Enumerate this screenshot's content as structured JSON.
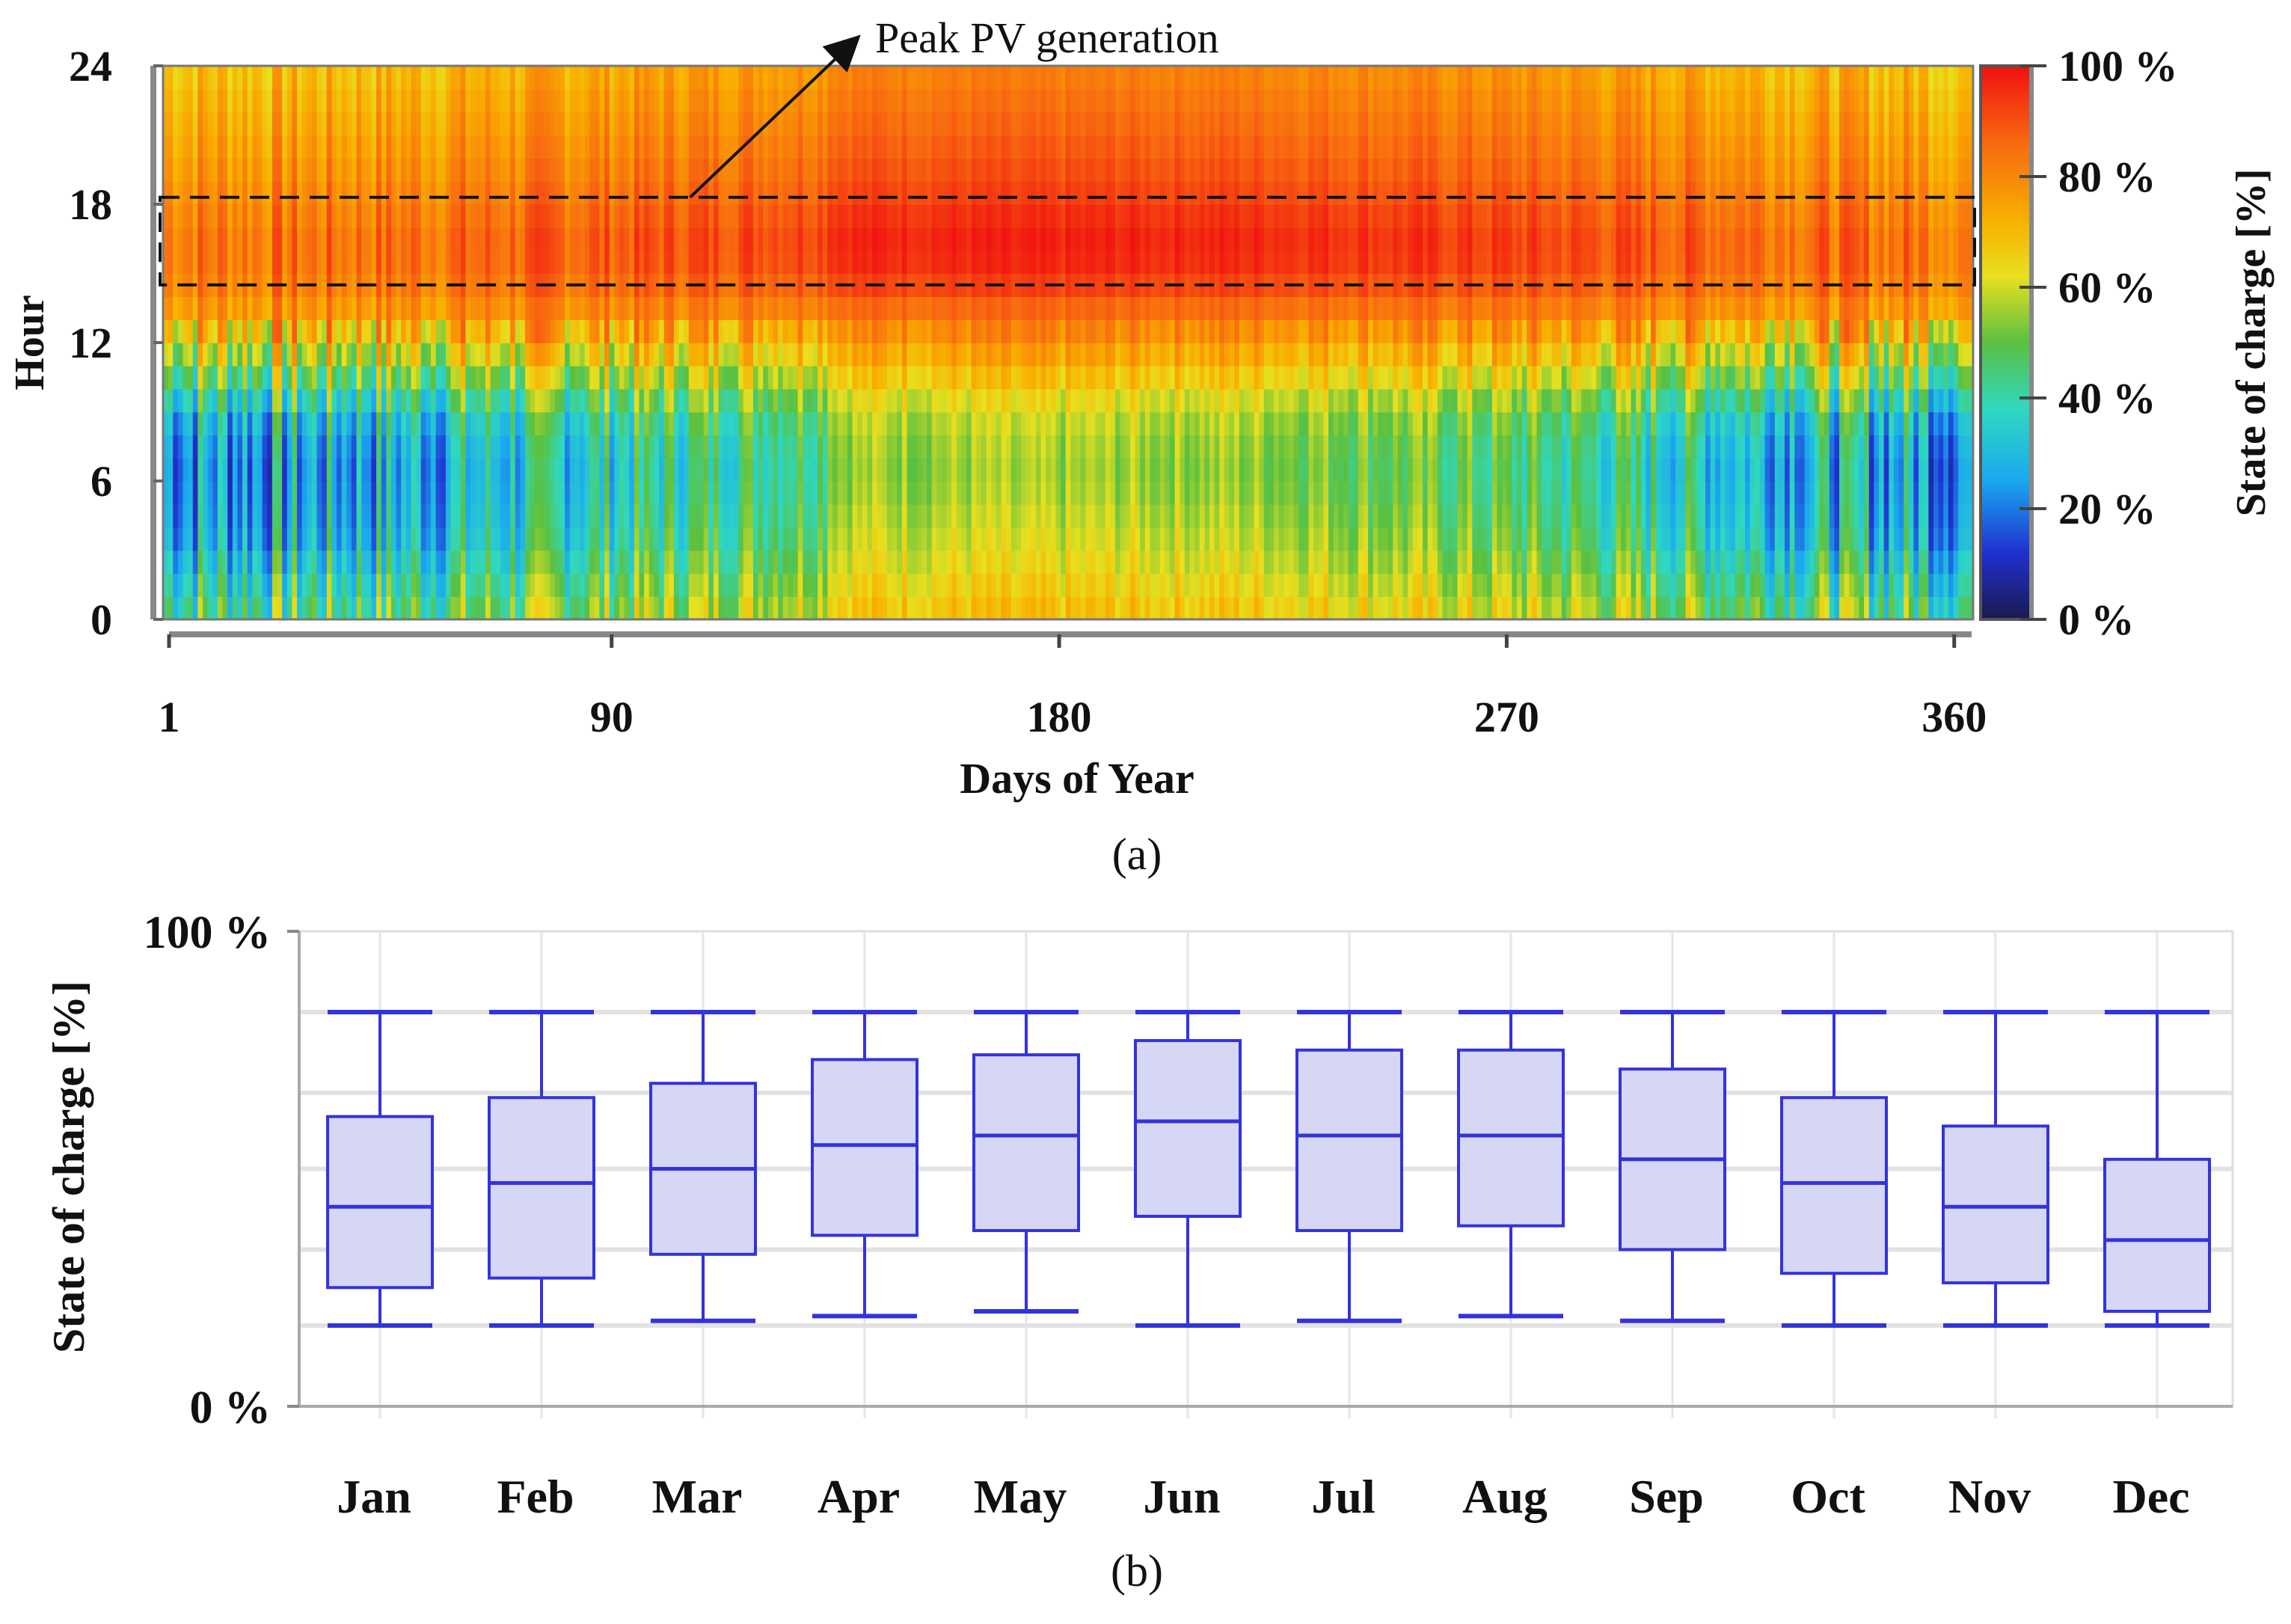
{
  "chart_data": [
    {
      "id": "a",
      "type": "heatmap",
      "panel_label": "(a)",
      "xlabel": "Days of Year",
      "ylabel": "Hour",
      "xlim": [
        1,
        365
      ],
      "ylim": [
        0,
        24
      ],
      "x_ticks": [
        "1",
        "90",
        "180",
        "270",
        "360"
      ],
      "x_tick_values": [
        1,
        90,
        180,
        270,
        360
      ],
      "y_ticks": [
        "0",
        "6",
        "12",
        "18",
        "24"
      ],
      "y_tick_values": [
        0,
        6,
        12,
        18,
        24
      ],
      "colorbar": {
        "label": "State of charge [%]",
        "range": [
          0,
          100
        ],
        "ticks": [
          "0 %",
          "20 %",
          "40 %",
          "60 %",
          "80 %",
          "100 %"
        ],
        "tick_values": [
          0,
          20,
          40,
          60,
          80,
          100
        ],
        "colormap": [
          "#1a1a4e",
          "#2030d0",
          "#1aa8f0",
          "#30d8c0",
          "#5ac040",
          "#e8e020",
          "#f8b000",
          "#f86a10",
          "#f01010"
        ]
      },
      "annotation": {
        "text": "Peak PV generation",
        "hour_range": [
          14.5,
          18.3
        ],
        "day_range": [
          1,
          365
        ],
        "arrow_from_day": 107,
        "arrow_from_hour": 18.3
      },
      "pattern": {
        "description_values": "Diurnal SOC: low (20-50 %) overnight/morning, rising to 80-100 % in afternoon peak hours; summer days (~day 140-170) consistently high",
        "hourly_profile_by_season": {
          "winter": [
            45,
            40,
            35,
            30,
            28,
            27,
            26,
            28,
            32,
            40,
            50,
            60,
            70,
            78,
            82,
            84,
            84,
            82,
            80,
            78,
            76,
            74,
            72,
            70,
            68
          ],
          "summer": [
            68,
            65,
            62,
            60,
            58,
            56,
            55,
            56,
            58,
            62,
            68,
            74,
            80,
            86,
            92,
            96,
            97,
            95,
            92,
            90,
            88,
            86,
            84,
            82,
            80
          ]
        }
      }
    },
    {
      "id": "b",
      "type": "box",
      "panel_label": "(b)",
      "ylabel": "State of charge [%]",
      "ylim": [
        0,
        100
      ],
      "y_ticks": [
        "0 %",
        "100 %"
      ],
      "y_tick_values": [
        0,
        100
      ],
      "grid_values": [
        17,
        33,
        50,
        66,
        83
      ],
      "categories": [
        "Jan",
        "Feb",
        "Mar",
        "Apr",
        "May",
        "Jun",
        "Jul",
        "Aug",
        "Sep",
        "Oct",
        "Nov",
        "Dec"
      ],
      "series": [
        {
          "name": "State of charge",
          "color": "#3333dd",
          "fill": "#d6d6f5",
          "whisker_low": [
            17,
            17,
            18,
            19,
            20,
            17,
            18,
            19,
            18,
            17,
            17,
            17
          ],
          "q1": [
            25,
            27,
            32,
            36,
            37,
            40,
            37,
            38,
            33,
            28,
            26,
            20
          ],
          "median": [
            42,
            47,
            50,
            55,
            57,
            60,
            57,
            57,
            52,
            47,
            42,
            35
          ],
          "q3": [
            61,
            65,
            68,
            73,
            74,
            77,
            75,
            75,
            71,
            65,
            59,
            52
          ],
          "whisker_high": [
            83,
            83,
            83,
            83,
            83,
            83,
            83,
            83,
            83,
            83,
            83,
            83
          ]
        }
      ]
    }
  ]
}
